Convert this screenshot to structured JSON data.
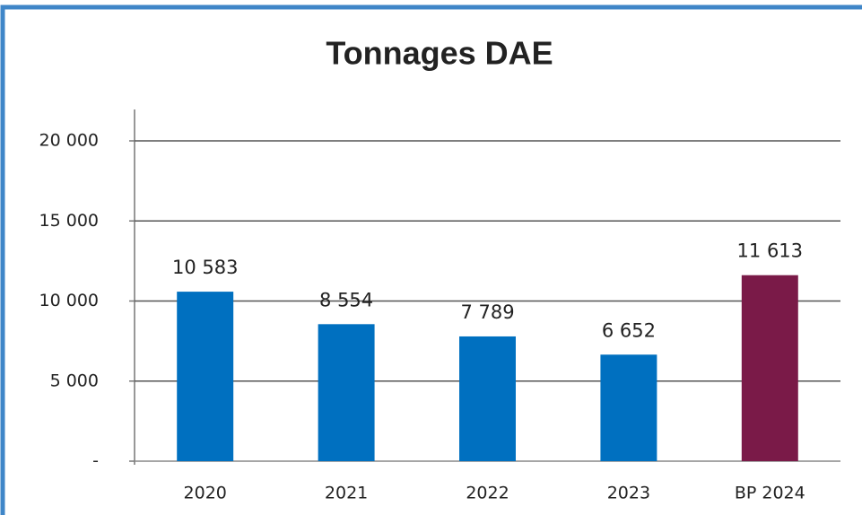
{
  "chart_data": {
    "type": "bar",
    "title": "Tonnages DAE",
    "categories": [
      "2020",
      "2021",
      "2022",
      "2023",
      "BP 2024"
    ],
    "values": [
      10583,
      8554,
      7789,
      6652,
      11613
    ],
    "value_labels": [
      "10 583",
      "8 554",
      "7 789",
      "6 652",
      "11 613"
    ],
    "colors": [
      "#0070c0",
      "#0070c0",
      "#0070c0",
      "#0070c0",
      "#7a1a48"
    ],
    "ylim": [
      0,
      20000
    ],
    "yticks": [
      {
        "value": 0,
        "label": "-"
      },
      {
        "value": 5000,
        "label": "5 000"
      },
      {
        "value": 10000,
        "label": "10 000"
      },
      {
        "value": 15000,
        "label": "15 000"
      },
      {
        "value": 20000,
        "label": "20 000"
      }
    ],
    "grid": true
  }
}
